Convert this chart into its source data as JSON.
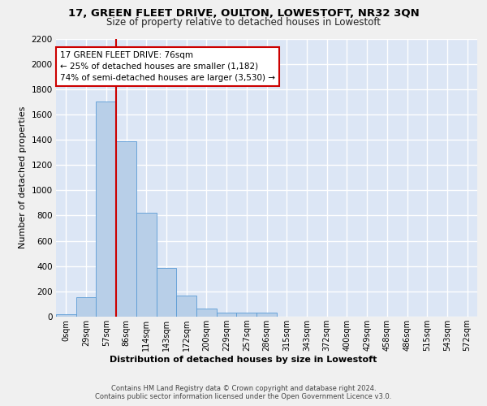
{
  "title": "17, GREEN FLEET DRIVE, OULTON, LOWESTOFT, NR32 3QN",
  "subtitle": "Size of property relative to detached houses in Lowestoft",
  "xlabel": "Distribution of detached houses by size in Lowestoft",
  "ylabel": "Number of detached properties",
  "bin_labels": [
    "0sqm",
    "29sqm",
    "57sqm",
    "86sqm",
    "114sqm",
    "143sqm",
    "172sqm",
    "200sqm",
    "229sqm",
    "257sqm",
    "286sqm",
    "315sqm",
    "343sqm",
    "372sqm",
    "400sqm",
    "429sqm",
    "458sqm",
    "486sqm",
    "515sqm",
    "543sqm",
    "572sqm"
  ],
  "bar_heights": [
    20,
    155,
    1700,
    1390,
    825,
    385,
    165,
    65,
    35,
    30,
    30,
    0,
    0,
    0,
    0,
    0,
    0,
    0,
    0,
    0,
    0
  ],
  "bar_color": "#b8cfe8",
  "bar_edge_color": "#5b9bd5",
  "background_color": "#dce6f5",
  "grid_color": "#ffffff",
  "vline_x": 2.5,
  "annotation_text": "17 GREEN FLEET DRIVE: 76sqm\n← 25% of detached houses are smaller (1,182)\n74% of semi-detached houses are larger (3,530) →",
  "annotation_box_color": "#ffffff",
  "annotation_box_edge_color": "#cc0000",
  "vline_color": "#cc0000",
  "ylim": [
    0,
    2200
  ],
  "yticks": [
    0,
    200,
    400,
    600,
    800,
    1000,
    1200,
    1400,
    1600,
    1800,
    2000,
    2200
  ],
  "fig_bg": "#f0f0f0",
  "footer_line1": "Contains HM Land Registry data © Crown copyright and database right 2024.",
  "footer_line2": "Contains public sector information licensed under the Open Government Licence v3.0."
}
